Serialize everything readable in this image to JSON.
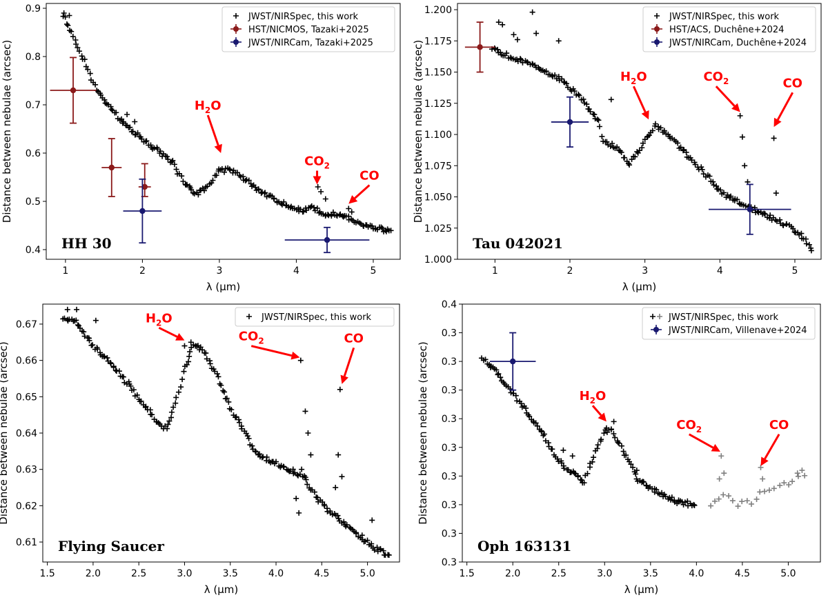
{
  "figure": {
    "colors": {
      "black": "#000000",
      "gray": "#7f7f7f",
      "hst": "#8b1a1a",
      "jwst": "#191970",
      "annotation": "#ff0000"
    }
  },
  "chart_data": [
    {
      "type": "scatter",
      "panel_label": "HH 30",
      "xlabel": "λ (μm)",
      "ylabel": "Distance between nebulae (arcsec)",
      "xlim": [
        0.75,
        5.35
      ],
      "ylim": [
        0.38,
        0.91
      ],
      "xticks": [
        1,
        2,
        3,
        4,
        5
      ],
      "yticks": [
        0.4,
        0.5,
        0.6,
        0.7,
        0.8,
        0.9
      ],
      "legend_position": "upper right",
      "legend": [
        "JWST/NIRSpec, this work",
        "HST/NICMOS, Tazaki+2025",
        "JWST/NIRCam, Tazaki+2025"
      ],
      "nirspec_curve": [
        [
          0.98,
          0.885
        ],
        [
          1.1,
          0.84
        ],
        [
          1.25,
          0.79
        ],
        [
          1.4,
          0.73
        ],
        [
          1.6,
          0.69
        ],
        [
          1.8,
          0.655
        ],
        [
          2.0,
          0.63
        ],
        [
          2.2,
          0.605
        ],
        [
          2.4,
          0.58
        ],
        [
          2.55,
          0.535
        ],
        [
          2.7,
          0.515
        ],
        [
          2.85,
          0.53
        ],
        [
          3.0,
          0.565
        ],
        [
          3.15,
          0.565
        ],
        [
          3.3,
          0.55
        ],
        [
          3.5,
          0.525
        ],
        [
          3.7,
          0.505
        ],
        [
          3.9,
          0.49
        ],
        [
          4.1,
          0.48
        ],
        [
          4.2,
          0.49
        ],
        [
          4.35,
          0.47
        ],
        [
          4.5,
          0.475
        ],
        [
          4.65,
          0.47
        ],
        [
          4.8,
          0.455
        ],
        [
          5.0,
          0.445
        ],
        [
          5.25,
          0.438
        ]
      ],
      "nirspec_outliers": [
        [
          0.98,
          0.89
        ],
        [
          1.05,
          0.885
        ],
        [
          1.8,
          0.68
        ],
        [
          1.9,
          0.665
        ],
        [
          4.28,
          0.53
        ],
        [
          4.32,
          0.52
        ],
        [
          4.38,
          0.505
        ],
        [
          4.68,
          0.485
        ],
        [
          4.72,
          0.478
        ]
      ],
      "hst_points": [
        {
          "x": 1.1,
          "y": 0.73,
          "xerr": 0.3,
          "yerr": [
            0.068,
            0.068
          ]
        },
        {
          "x": 1.6,
          "y": 0.57,
          "xerr": 0.13,
          "yerr": [
            0.06,
            0.06
          ]
        },
        {
          "x": 2.03,
          "y": 0.53,
          "xerr": 0.08,
          "yerr": [
            0.02,
            0.048
          ]
        }
      ],
      "jwst_points": [
        {
          "x": 2.0,
          "y": 0.48,
          "xerr": 0.25,
          "yerr": [
            0.066,
            0.066
          ]
        },
        {
          "x": 4.4,
          "y": 0.42,
          "xerr": 0.55,
          "yerr": [
            0.026,
            0.026
          ]
        }
      ],
      "annotations": [
        {
          "label": "H",
          "sub": "2",
          "rest": "O",
          "text_x": 2.85,
          "text_y": 0.69,
          "arrow_to": [
            3.02,
            0.6
          ]
        },
        {
          "label": "CO",
          "sub": "2",
          "rest": "",
          "text_x": 4.27,
          "text_y": 0.575,
          "arrow_to": [
            4.27,
            0.535
          ]
        },
        {
          "label": "CO",
          "sub": "",
          "rest": "",
          "text_x": 4.95,
          "text_y": 0.545,
          "arrow_to": [
            4.68,
            0.495
          ]
        }
      ]
    },
    {
      "type": "scatter",
      "panel_label": "Tau 042021",
      "xlabel": "λ (μm)",
      "ylabel": "Distance between nebulae (arcsec)",
      "xlim": [
        0.5,
        5.35
      ],
      "ylim": [
        1.0,
        1.205
      ],
      "xticks": [
        1,
        2,
        3,
        4,
        5
      ],
      "yticks": [
        1.0,
        1.025,
        1.05,
        1.075,
        1.1,
        1.125,
        1.15,
        1.175,
        1.2
      ],
      "ytick_labels": [
        "1.000",
        "1.025",
        "1.050",
        "1.075",
        "1.100",
        "1.125",
        "1.150",
        "1.175",
        "1.200"
      ],
      "legend_position": "upper right",
      "legend": [
        "JWST/NIRSpec, this work",
        "HST/ACS, Duchêne+2024",
        "JWST/NIRCam, Duchêne+2024"
      ],
      "nirspec_curve": [
        [
          0.97,
          1.17
        ],
        [
          1.2,
          1.162
        ],
        [
          1.4,
          1.158
        ],
        [
          1.6,
          1.152
        ],
        [
          1.8,
          1.147
        ],
        [
          2.0,
          1.138
        ],
        [
          2.2,
          1.125
        ],
        [
          2.38,
          1.11
        ],
        [
          2.45,
          1.095
        ],
        [
          2.6,
          1.09
        ],
        [
          2.8,
          1.077
        ],
        [
          3.0,
          1.095
        ],
        [
          3.15,
          1.108
        ],
        [
          3.3,
          1.1
        ],
        [
          3.5,
          1.088
        ],
        [
          3.7,
          1.075
        ],
        [
          3.9,
          1.062
        ],
        [
          4.1,
          1.05
        ],
        [
          4.3,
          1.045
        ],
        [
          4.5,
          1.038
        ],
        [
          4.7,
          1.033
        ],
        [
          4.9,
          1.027
        ],
        [
          5.1,
          1.018
        ],
        [
          5.25,
          1.006
        ]
      ],
      "nirspec_outliers": [
        [
          1.05,
          1.19
        ],
        [
          1.25,
          1.18
        ],
        [
          1.3,
          1.176
        ],
        [
          1.55,
          1.181
        ],
        [
          1.85,
          1.175
        ],
        [
          2.55,
          1.128
        ],
        [
          4.27,
          1.115
        ],
        [
          4.3,
          1.098
        ],
        [
          4.33,
          1.075
        ],
        [
          4.37,
          1.062
        ],
        [
          4.72,
          1.097
        ],
        [
          4.75,
          1.053
        ],
        [
          1.5,
          1.198
        ],
        [
          1.1,
          1.188
        ]
      ],
      "hst_points": [
        {
          "x": 0.8,
          "y": 1.17,
          "xerr": 0.2,
          "yerr": [
            0.02,
            0.02
          ]
        }
      ],
      "jwst_points": [
        {
          "x": 2.0,
          "y": 1.11,
          "xerr": 0.25,
          "yerr": [
            0.02,
            0.02
          ]
        },
        {
          "x": 4.4,
          "y": 1.04,
          "xerr": 0.55,
          "yerr": [
            0.02,
            0.02
          ]
        }
      ],
      "annotations": [
        {
          "label": "H",
          "sub": "2",
          "rest": "O",
          "text_x": 2.85,
          "text_y": 1.143,
          "arrow_to": [
            3.05,
            1.112
          ]
        },
        {
          "label": "CO",
          "sub": "2",
          "rest": "",
          "text_x": 3.95,
          "text_y": 1.143,
          "arrow_to": [
            4.27,
            1.118
          ]
        },
        {
          "label": "CO",
          "sub": "",
          "rest": "",
          "text_x": 4.97,
          "text_y": 1.138,
          "arrow_to": [
            4.72,
            1.106
          ]
        }
      ]
    },
    {
      "type": "scatter",
      "panel_label": "Flying Saucer",
      "xlabel": "λ (μm)",
      "ylabel": "Distance between nebulae (arcsec)",
      "xlim": [
        1.45,
        5.35
      ],
      "ylim": [
        0.6045,
        0.6755
      ],
      "xticks": [
        1.5,
        2.0,
        2.5,
        3.0,
        3.5,
        4.0,
        4.5,
        5.0
      ],
      "ytick_labels": [
        "0.61",
        "0.62",
        "0.63",
        "0.64",
        "0.65",
        "0.66",
        "0.67"
      ],
      "yticks": [
        0.61,
        0.62,
        0.63,
        0.64,
        0.65,
        0.66,
        0.67
      ],
      "legend_position": "upper right",
      "legend": [
        "JWST/NIRSpec, this work"
      ],
      "nirspec_curve": [
        [
          1.68,
          0.671
        ],
        [
          1.8,
          0.671
        ],
        [
          2.0,
          0.664
        ],
        [
          2.2,
          0.659
        ],
        [
          2.4,
          0.653
        ],
        [
          2.55,
          0.648
        ],
        [
          2.7,
          0.643
        ],
        [
          2.8,
          0.641
        ],
        [
          2.9,
          0.648
        ],
        [
          3.0,
          0.658
        ],
        [
          3.1,
          0.664
        ],
        [
          3.2,
          0.663
        ],
        [
          3.35,
          0.656
        ],
        [
          3.5,
          0.647
        ],
        [
          3.65,
          0.64
        ],
        [
          3.8,
          0.634
        ],
        [
          3.97,
          0.632
        ],
        [
          4.3,
          0.628
        ],
        [
          4.45,
          0.622
        ],
        [
          4.6,
          0.618
        ],
        [
          4.75,
          0.615
        ],
        [
          4.9,
          0.612
        ],
        [
          5.1,
          0.608
        ],
        [
          5.25,
          0.606
        ]
      ],
      "nirspec_outliers": [
        [
          1.72,
          0.674
        ],
        [
          1.82,
          0.674
        ],
        [
          2.03,
          0.671
        ],
        [
          3.0,
          0.664
        ],
        [
          3.07,
          0.665
        ],
        [
          4.27,
          0.66
        ],
        [
          4.32,
          0.646
        ],
        [
          4.35,
          0.64
        ],
        [
          4.38,
          0.634
        ],
        [
          4.22,
          0.622
        ],
        [
          4.25,
          0.618
        ],
        [
          4.28,
          0.63
        ],
        [
          4.7,
          0.652
        ],
        [
          4.68,
          0.634
        ],
        [
          4.72,
          0.628
        ],
        [
          4.65,
          0.625
        ],
        [
          5.05,
          0.616
        ]
      ],
      "annotations": [
        {
          "label": "H",
          "sub": "2",
          "rest": "O",
          "text_x": 2.72,
          "text_y": 0.6705,
          "arrow_to": [
            3.0,
            0.6655
          ]
        },
        {
          "label": "CO",
          "sub": "2",
          "rest": "",
          "text_x": 3.73,
          "text_y": 0.6655,
          "arrow_to": [
            4.26,
            0.6608
          ]
        },
        {
          "label": "CO",
          "sub": "",
          "rest": "",
          "text_x": 4.85,
          "text_y": 0.665,
          "arrow_to": [
            4.72,
            0.6535
          ]
        }
      ]
    },
    {
      "type": "scatter",
      "panel_label": "Oph 163131",
      "xlabel": "λ (μm)",
      "ylabel": "Distance between nebulae (arcsec)",
      "xlim": [
        1.45,
        5.35
      ],
      "ylim": [
        0.27,
        0.36
      ],
      "xticks": [
        1.5,
        2.0,
        2.5,
        3.0,
        3.5,
        4.0,
        4.5,
        5.0
      ],
      "yticks": [
        0.27,
        0.28,
        0.29,
        0.3,
        0.31,
        0.32,
        0.33,
        0.34,
        0.35,
        0.36
      ],
      "legend_position": "upper right",
      "legend": [
        "JWST/NIRSpec, this work",
        "JWST/NIRCam, Villenave+2024"
      ],
      "nirspec_curve": [
        [
          1.67,
          0.341
        ],
        [
          1.8,
          0.337
        ],
        [
          2.0,
          0.329
        ],
        [
          2.2,
          0.32
        ],
        [
          2.35,
          0.314
        ],
        [
          2.5,
          0.305
        ],
        [
          2.65,
          0.301
        ],
        [
          2.78,
          0.298
        ],
        [
          2.9,
          0.308
        ],
        [
          3.0,
          0.316
        ],
        [
          3.08,
          0.316
        ],
        [
          3.2,
          0.309
        ],
        [
          3.35,
          0.299
        ],
        [
          3.5,
          0.296
        ],
        [
          3.65,
          0.293
        ],
        [
          3.8,
          0.291
        ],
        [
          4.0,
          0.29
        ]
      ],
      "nirspec_gray_curve": [
        [
          4.15,
          0.29
        ],
        [
          4.3,
          0.294
        ],
        [
          4.45,
          0.29
        ],
        [
          4.6,
          0.291
        ],
        [
          4.75,
          0.295
        ],
        [
          4.9,
          0.297
        ],
        [
          5.05,
          0.298
        ],
        [
          5.25,
          0.302
        ]
      ],
      "nirspec_outliers": [
        [
          2.55,
          0.309
        ],
        [
          2.65,
          0.307
        ],
        [
          3.1,
          0.319
        ],
        [
          3.35,
          0.302
        ]
      ],
      "nirspec_gray_outliers": [
        [
          4.27,
          0.307
        ],
        [
          4.25,
          0.299
        ],
        [
          4.3,
          0.301
        ],
        [
          4.7,
          0.303
        ],
        [
          4.72,
          0.299
        ],
        [
          5.1,
          0.301
        ],
        [
          5.15,
          0.302
        ]
      ],
      "jwst_points": [
        {
          "x": 2.0,
          "y": 0.34,
          "xerr": 0.25,
          "yerr": [
            0.01,
            0.01
          ]
        }
      ],
      "annotations": [
        {
          "label": "H",
          "sub": "2",
          "rest": "O",
          "text_x": 2.87,
          "text_y": 0.3265,
          "arrow_to": [
            3.02,
            0.319
          ]
        },
        {
          "label": "CO",
          "sub": "2",
          "rest": "",
          "text_x": 3.92,
          "text_y": 0.3165,
          "arrow_to": [
            4.26,
            0.3085
          ]
        },
        {
          "label": "CO",
          "sub": "",
          "rest": "",
          "text_x": 4.9,
          "text_y": 0.3165,
          "arrow_to": [
            4.7,
            0.3035
          ]
        }
      ]
    }
  ]
}
